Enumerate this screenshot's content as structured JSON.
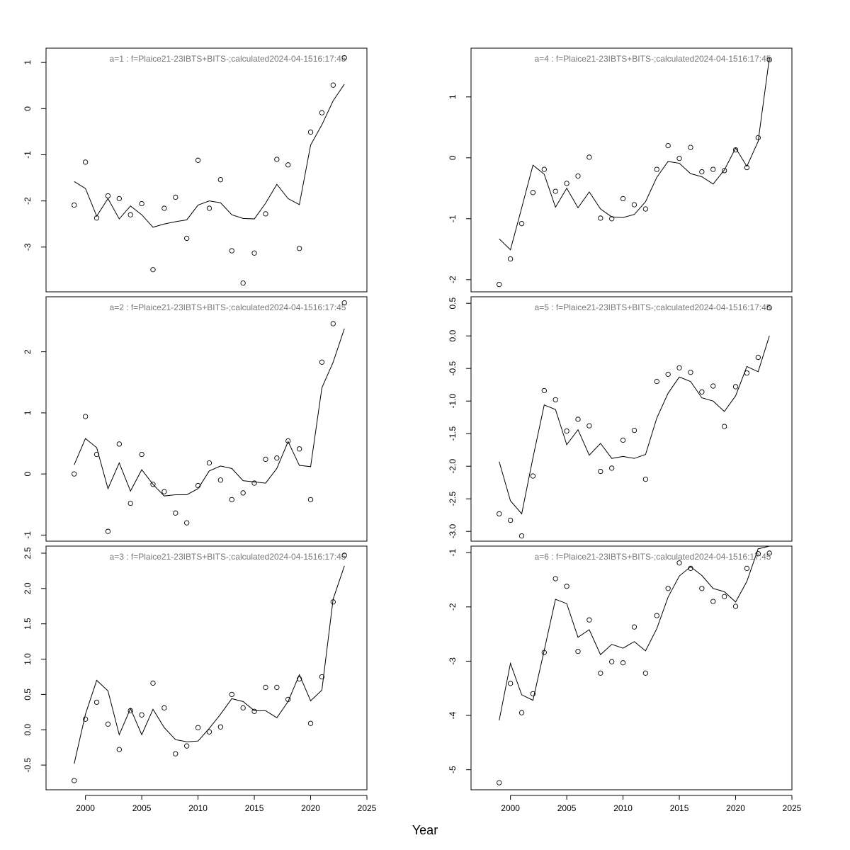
{
  "chart_data": {
    "type": "scatter",
    "layout": "3 rows x 2 columns; observed points (open circles) with fitted line",
    "xlabel": "Year",
    "x_ticks": [
      2000,
      2005,
      2010,
      2015,
      2020,
      2025
    ],
    "xlim": [
      1996.5,
      2025
    ],
    "years": [
      1999,
      2000,
      2001,
      2002,
      2003,
      2004,
      2005,
      2006,
      2007,
      2008,
      2009,
      2010,
      2011,
      2012,
      2013,
      2014,
      2015,
      2016,
      2017,
      2018,
      2019,
      2020,
      2021,
      2022,
      2023
    ],
    "panels": [
      {
        "title": "a=1  :  f=Plaice21-23IBTS+BITS-;calculated2024-04-1516:17:45",
        "ylim": [
          -3.97,
          1.31
        ],
        "y_ticks": [
          -3,
          -2,
          -1,
          0,
          1
        ],
        "observed": [
          -2.09,
          -1.16,
          -2.37,
          -1.89,
          -1.95,
          -2.3,
          -2.06,
          -3.49,
          -2.16,
          -1.92,
          -2.81,
          -1.12,
          -2.16,
          -1.54,
          -3.08,
          -3.78,
          -3.13,
          -2.28,
          -1.1,
          -1.22,
          -3.03,
          -0.51,
          -0.09,
          0.51,
          1.1
        ],
        "fitted": [
          -1.58,
          -1.73,
          -2.33,
          -1.95,
          -2.39,
          -2.11,
          -2.3,
          -2.57,
          -2.5,
          -2.45,
          -2.41,
          -2.09,
          -2.0,
          -2.04,
          -2.3,
          -2.38,
          -2.39,
          -2.05,
          -1.64,
          -1.95,
          -2.08,
          -0.79,
          -0.35,
          0.17,
          0.53
        ]
      },
      {
        "title": "a=4  :  f=Plaice21-23IBTS+BITS-;calculated2024-04-1516:17:45",
        "ylim": [
          -2.2,
          1.8
        ],
        "y_ticks": [
          -2,
          -1,
          0,
          1
        ],
        "observed": [
          -2.08,
          -1.66,
          -1.08,
          -0.57,
          -0.19,
          -0.55,
          -0.42,
          -0.3,
          0.01,
          -0.99,
          -1.0,
          -0.67,
          -0.77,
          -0.84,
          -0.19,
          0.2,
          -0.01,
          0.17,
          -0.23,
          -0.19,
          -0.21,
          0.13,
          -0.16,
          0.33,
          1.61
        ],
        "fitted": [
          -1.33,
          -1.51,
          -0.82,
          -0.12,
          -0.27,
          -0.81,
          -0.5,
          -0.82,
          -0.56,
          -0.84,
          -0.97,
          -0.98,
          -0.93,
          -0.72,
          -0.32,
          -0.06,
          -0.09,
          -0.26,
          -0.31,
          -0.43,
          -0.2,
          0.16,
          -0.14,
          0.27,
          1.64
        ]
      },
      {
        "title": "a=2  :  f=Plaice21-23IBTS+BITS-;calculated2024-04-1516:17:45",
        "ylim": [
          -1.1,
          2.9
        ],
        "y_ticks": [
          -1,
          0,
          1,
          2
        ],
        "observed": [
          0.0,
          0.94,
          0.32,
          -0.94,
          0.49,
          -0.48,
          0.32,
          -0.17,
          -0.29,
          -0.64,
          -0.8,
          -0.19,
          0.18,
          -0.1,
          -0.42,
          -0.31,
          -0.15,
          0.24,
          0.26,
          0.54,
          0.41,
          -0.42,
          1.83,
          2.46,
          2.8
        ],
        "fitted": [
          0.15,
          0.58,
          0.43,
          -0.24,
          0.18,
          -0.28,
          0.07,
          -0.17,
          -0.36,
          -0.34,
          -0.34,
          -0.24,
          0.05,
          0.13,
          0.09,
          -0.11,
          -0.13,
          -0.15,
          0.09,
          0.53,
          0.14,
          0.12,
          1.41,
          1.83,
          2.38
        ]
      },
      {
        "title": "a=5  :  f=Plaice21-23IBTS+BITS-;calculated2024-04-1516:17:45",
        "ylim": [
          -3.15,
          0.6
        ],
        "y_ticks": [
          -3.0,
          -2.5,
          -2.0,
          -1.5,
          -1.0,
          -0.5,
          0.0,
          0.5
        ],
        "observed": [
          -2.73,
          -2.83,
          -3.07,
          -2.15,
          -0.84,
          -0.98,
          -1.46,
          -1.28,
          -1.38,
          -2.08,
          -2.03,
          -1.6,
          -1.45,
          -2.2,
          -0.7,
          -0.59,
          -0.49,
          -0.56,
          -0.86,
          -0.77,
          -1.39,
          -0.78,
          -0.57,
          -0.33,
          0.43
        ],
        "fitted": [
          -1.93,
          -2.53,
          -2.73,
          -1.87,
          -1.06,
          -1.13,
          -1.67,
          -1.44,
          -1.83,
          -1.65,
          -1.88,
          -1.85,
          -1.88,
          -1.82,
          -1.26,
          -0.88,
          -0.63,
          -0.7,
          -0.95,
          -1.0,
          -1.16,
          -0.92,
          -0.47,
          -0.55,
          0.0
        ]
      },
      {
        "title": "a=3  :  f=Plaice21-23IBTS+BITS-;calculated2024-04-1516:17:45",
        "ylim": [
          -0.85,
          2.6
        ],
        "y_ticks": [
          -0.5,
          0.0,
          0.5,
          1.0,
          1.5,
          2.0,
          2.5
        ],
        "observed": [
          -0.72,
          0.15,
          0.39,
          0.08,
          -0.28,
          0.27,
          0.21,
          0.66,
          0.31,
          -0.34,
          -0.23,
          0.03,
          -0.03,
          0.04,
          0.5,
          0.31,
          0.26,
          0.6,
          0.6,
          0.43,
          0.72,
          0.09,
          0.75,
          1.81,
          2.47
        ],
        "fitted": [
          -0.48,
          0.22,
          0.7,
          0.55,
          -0.07,
          0.3,
          -0.07,
          0.29,
          0.03,
          -0.14,
          -0.17,
          -0.16,
          0.02,
          0.22,
          0.44,
          0.4,
          0.27,
          0.27,
          0.17,
          0.4,
          0.78,
          0.41,
          0.56,
          1.85,
          2.32
        ]
      },
      {
        "title": "a=6  :  f=Plaice21-23IBTS+BITS-;calculated2024-04-1516:17:45",
        "ylim": [
          -5.37,
          -0.88
        ],
        "y_ticks": [
          -5,
          -4,
          -3,
          -2,
          -1
        ],
        "observed": [
          -5.24,
          -3.41,
          -3.95,
          -3.6,
          -2.84,
          -1.48,
          -1.62,
          -2.82,
          -2.24,
          -3.22,
          -3.01,
          -3.03,
          -2.37,
          -3.22,
          -2.16,
          -1.66,
          -1.19,
          -1.29,
          -1.66,
          -1.9,
          -1.81,
          -1.99,
          -1.29,
          -1.02,
          -1.01
        ],
        "fitted": [
          -4.09,
          -3.04,
          -3.62,
          -3.72,
          -2.8,
          -1.86,
          -1.94,
          -2.56,
          -2.42,
          -2.88,
          -2.69,
          -2.76,
          -2.64,
          -2.81,
          -2.4,
          -1.82,
          -1.43,
          -1.26,
          -1.42,
          -1.66,
          -1.72,
          -1.91,
          -1.53,
          -0.93,
          -0.88
        ]
      }
    ]
  }
}
